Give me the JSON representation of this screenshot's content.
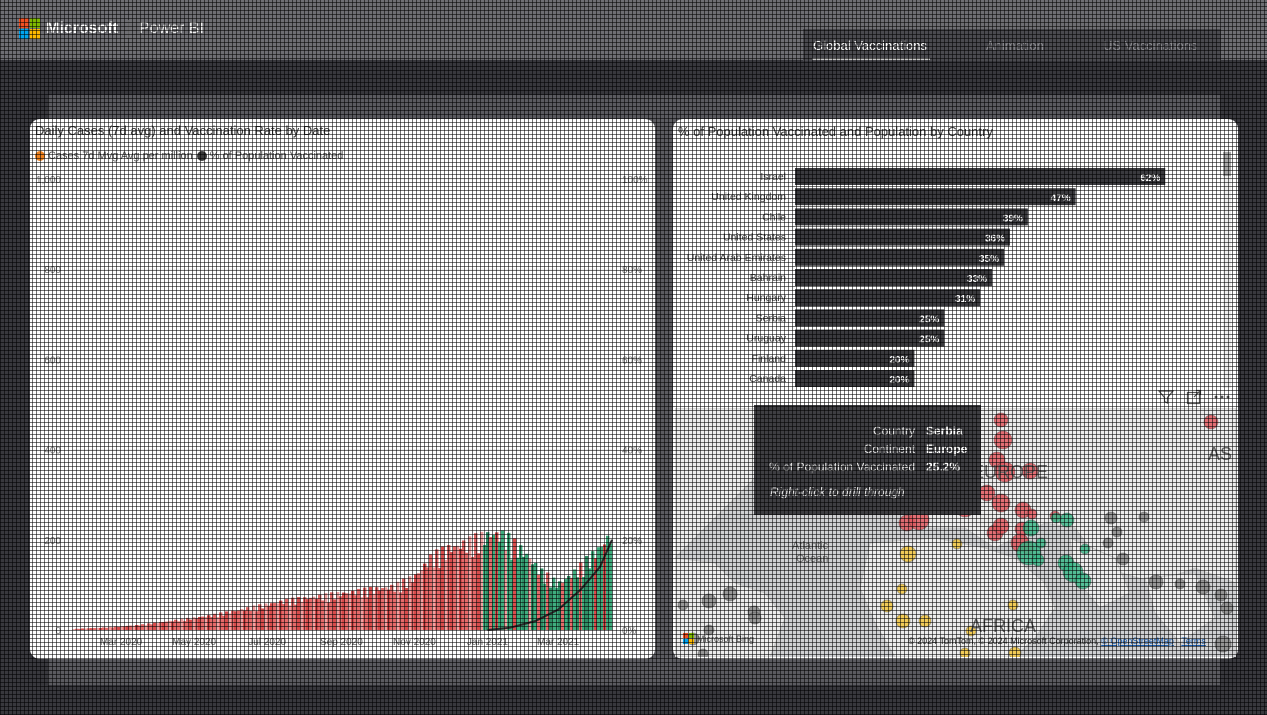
{
  "app": {
    "brand": "Microsoft",
    "product": "Power BI",
    "brand_colors": [
      "#f25022",
      "#7fba00",
      "#00a4ef",
      "#ffb900"
    ]
  },
  "tabs": [
    {
      "label": "Global Vaccinations",
      "active": true
    },
    {
      "label": "Animation",
      "active": false
    },
    {
      "label": "US Vaccinations",
      "active": false
    }
  ],
  "line_visual": {
    "title": "Daily Cases (7d avg) and Vaccination Rate by Date",
    "legend": [
      {
        "label": "Cases 7d Mvg Avg per million",
        "color": "#f0821e"
      },
      {
        "label": "% of Population Vaccinated",
        "color": "#3a3a3a"
      }
    ]
  },
  "bar_visual": {
    "title": "% of Population Vaccinated and Population by Country",
    "bar_color": "#3a3a3e"
  },
  "map_visual": {
    "labels": {
      "europe": "EUROPE",
      "asia": "AS",
      "africa": "AFRICA",
      "ocean_line1": "Atlantic",
      "ocean_line2": "Ocean"
    },
    "attribution": "© 2024 TomTom, © 2024 Microsoft Corporation,",
    "attribution_link": "© OpenStreetMap",
    "terms": "Terms",
    "bing": "Microsoft Bing",
    "icons": [
      "filter-icon",
      "focus-mode-icon",
      "more-options-icon"
    ]
  },
  "tooltip": {
    "rows": [
      {
        "key": "Country",
        "value": "Serbia"
      },
      {
        "key": "Continent",
        "value": "Europe"
      },
      {
        "key": "% of Population Vaccinated",
        "value": "25.2%"
      }
    ],
    "hint": "Right-click to drill through"
  },
  "chart_data": [
    {
      "type": "line",
      "title": "Daily Cases (7d avg) and Vaccination Rate by Date",
      "x_ticks": [
        "Mar 2020",
        "May 2020",
        "Jul 2020",
        "Sep 2020",
        "Nov 2020",
        "Jan 2021",
        "Mar 2021"
      ],
      "y_left_ticks": [
        "0",
        "200",
        "400",
        "600",
        "800",
        "1,000"
      ],
      "y_right_ticks": [
        "0%",
        "20%",
        "40%",
        "60%",
        "80%",
        "100%"
      ],
      "ylim_left": [
        0,
        1000
      ],
      "ylim_right": [
        0,
        100
      ],
      "series": [
        {
          "name": "Cases 7d Mvg Avg per million",
          "render": "columns colored by vaccination rate (red low, green high)",
          "x": [
            "2020-01-20",
            "2020-02-15",
            "2020-03-15",
            "2020-04-15",
            "2020-05-15",
            "2020-06-15",
            "2020-07-15",
            "2020-08-15",
            "2020-09-15",
            "2020-10-15",
            "2020-11-01",
            "2020-11-15",
            "2020-12-01",
            "2020-12-15",
            "2021-01-05",
            "2021-01-15",
            "2021-02-01",
            "2021-02-15",
            "2021-03-01",
            "2021-03-15",
            "2021-04-01",
            "2021-04-15"
          ],
          "values": [
            2,
            5,
            10,
            20,
            30,
            45,
            60,
            70,
            80,
            90,
            110,
            150,
            170,
            180,
            200,
            195,
            160,
            120,
            95,
            120,
            160,
            200
          ]
        },
        {
          "name": "% of Population Vaccinated",
          "x": [
            "2021-01-01",
            "2021-01-20",
            "2021-02-10",
            "2021-03-01",
            "2021-03-20",
            "2021-04-05",
            "2021-04-15"
          ],
          "values": [
            0,
            0.5,
            2,
            4.5,
            9,
            14,
            20
          ]
        }
      ]
    },
    {
      "type": "bar",
      "title": "% of Population Vaccinated and Population by Country",
      "orientation": "horizontal",
      "categories": [
        "Israel",
        "United Kingdom",
        "Chile",
        "United States",
        "United Arab Emirates",
        "Bahrain",
        "Hungary",
        "Serbia",
        "Uruguay",
        "Finland",
        "Canada"
      ],
      "values": [
        62,
        47,
        39,
        36,
        35,
        33,
        31,
        25,
        25,
        20,
        20
      ],
      "data_labels": [
        "62%",
        "47%",
        "39%",
        "36%",
        "35%",
        "33%",
        "31%",
        "25%",
        "25%",
        "20%",
        "20%"
      ],
      "xlim": [
        0,
        70
      ]
    }
  ]
}
